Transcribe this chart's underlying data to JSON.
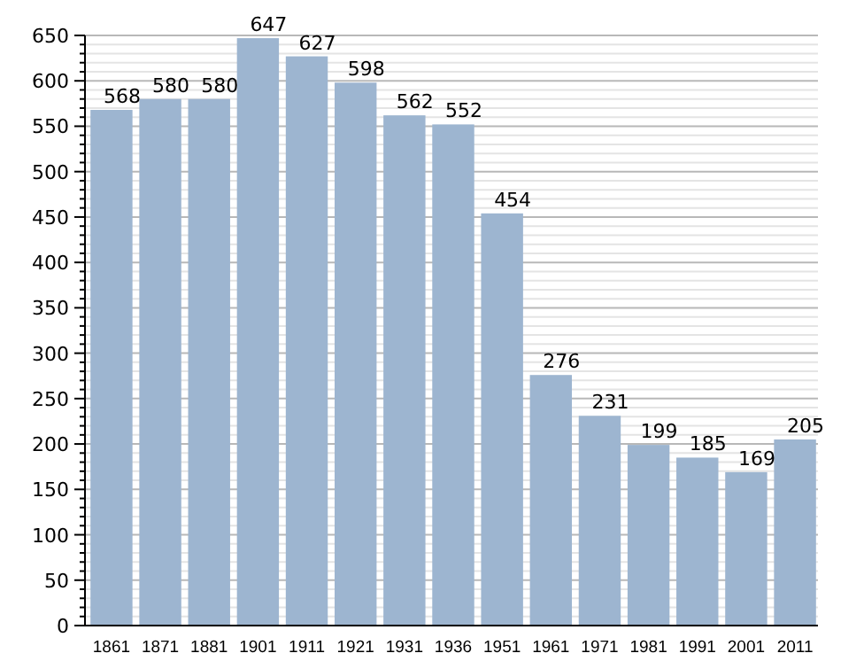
{
  "chart_data": {
    "type": "bar",
    "categories": [
      "1861",
      "1871",
      "1881",
      "1901",
      "1911",
      "1921",
      "1931",
      "1936",
      "1951",
      "1961",
      "1971",
      "1981",
      "1991",
      "2001",
      "2011"
    ],
    "values": [
      568,
      580,
      580,
      647,
      627,
      598,
      562,
      552,
      454,
      276,
      231,
      199,
      185,
      169,
      205
    ],
    "color": "#9db5d0",
    "data_labels": true,
    "grid": true,
    "ylim": [
      0,
      650
    ],
    "yticks": [
      0,
      {
        "value": 10,
        "label": null
      },
      {
        "value": 20,
        "label": null
      },
      {
        "value": 30,
        "label": null
      },
      {
        "value": 40,
        "label": null
      },
      50,
      {
        "value": 60,
        "label": null
      },
      {
        "value": 70,
        "label": null
      },
      {
        "value": 80,
        "label": null
      },
      {
        "value": 90,
        "label": null
      },
      100,
      {
        "value": 110,
        "label": null
      },
      {
        "value": 120,
        "label": null
      },
      {
        "value": 130,
        "label": null
      },
      {
        "value": 140,
        "label": null
      },
      150,
      {
        "value": 160,
        "label": null
      },
      {
        "value": 170,
        "label": null
      },
      {
        "value": 180,
        "label": null
      },
      {
        "value": 190,
        "label": null
      },
      200,
      {
        "value": 210,
        "label": null
      },
      {
        "value": 220,
        "label": null
      },
      {
        "value": 230,
        "label": null
      },
      {
        "value": 240,
        "label": null
      },
      250,
      {
        "value": 260,
        "label": null
      },
      {
        "value": 270,
        "label": null
      },
      {
        "value": 280,
        "label": null
      },
      {
        "value": 290,
        "label": null
      },
      300,
      {
        "value": 310,
        "label": null
      },
      {
        "value": 320,
        "label": null
      },
      {
        "value": 330,
        "label": null
      },
      {
        "value": 340,
        "label": null
      },
      350,
      {
        "value": 360,
        "label": null
      },
      {
        "value": 370,
        "label": null
      },
      {
        "value": 380,
        "label": null
      },
      {
        "value": 390,
        "label": null
      },
      400,
      {
        "value": 410,
        "label": null
      },
      {
        "value": 420,
        "label": null
      },
      {
        "value": 430,
        "label": null
      },
      {
        "value": 440,
        "label": null
      },
      450,
      {
        "value": 460,
        "label": null
      },
      {
        "value": 470,
        "label": null
      },
      {
        "value": 480,
        "label": null
      },
      {
        "value": 490,
        "label": null
      },
      500,
      {
        "value": 510,
        "label": null
      },
      {
        "value": 520,
        "label": null
      },
      {
        "value": 530,
        "label": null
      },
      {
        "value": 540,
        "label": null
      },
      550,
      {
        "value": 560,
        "label": null
      },
      {
        "value": 570,
        "label": null
      },
      {
        "value": 580,
        "label": null
      },
      {
        "value": 590,
        "label": null
      },
      600,
      {
        "value": 610,
        "label": null
      },
      {
        "value": 620,
        "label": null
      },
      {
        "value": 630,
        "label": null
      },
      {
        "value": 640,
        "label": null
      },
      650
    ]
  }
}
